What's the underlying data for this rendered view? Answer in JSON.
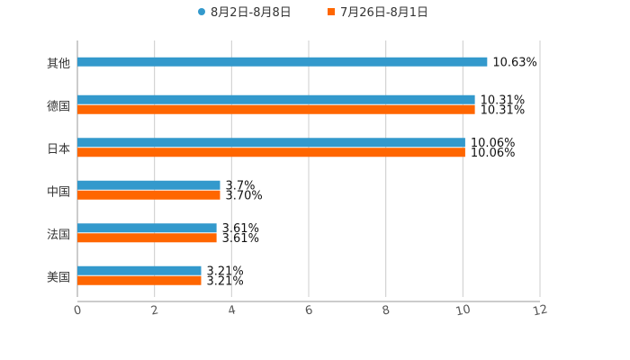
{
  "chart_data": {
    "type": "bar",
    "orientation": "horizontal",
    "title": "",
    "xlabel": "",
    "ylabel": "",
    "xlim": [
      0,
      12
    ],
    "x_ticks": [
      "0",
      "2",
      "4",
      "6",
      "8",
      "10",
      "12"
    ],
    "grid": true,
    "legend_position": "top-center",
    "categories": [
      "其他",
      "德国",
      "日本",
      "中国",
      "法国",
      "美国"
    ],
    "series": [
      {
        "name": "8月2日-8月8日",
        "color": "#3399cc",
        "values": [
          10.63,
          10.31,
          10.06,
          3.7,
          3.61,
          3.21
        ],
        "labels": [
          "10.63%",
          "10.31%",
          "10.06%",
          "3.7%",
          "3.61%",
          "3.21%"
        ]
      },
      {
        "name": "7月26日-8月1日",
        "color": "#ff6600",
        "values": [
          null,
          10.31,
          10.06,
          3.7,
          3.61,
          3.21
        ],
        "labels": [
          null,
          "10.31%",
          "10.06%",
          "3.70%",
          "3.61%",
          "3.21%"
        ]
      }
    ]
  }
}
